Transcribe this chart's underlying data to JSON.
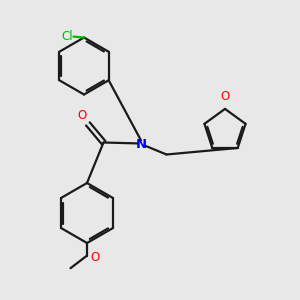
{
  "bg_color": "#e8e8e8",
  "bond_color": "#1a1a1a",
  "N_color": "#0000ff",
  "O_color": "#ff0000",
  "Cl_color": "#00bb00",
  "label_N": "N",
  "label_O_amide": "O",
  "label_O_furan": "O",
  "label_O_methoxy": "O",
  "label_Cl": "Cl",
  "fig_width": 3.0,
  "fig_height": 3.0,
  "dpi": 100,
  "lw": 1.6,
  "fs": 8.5
}
